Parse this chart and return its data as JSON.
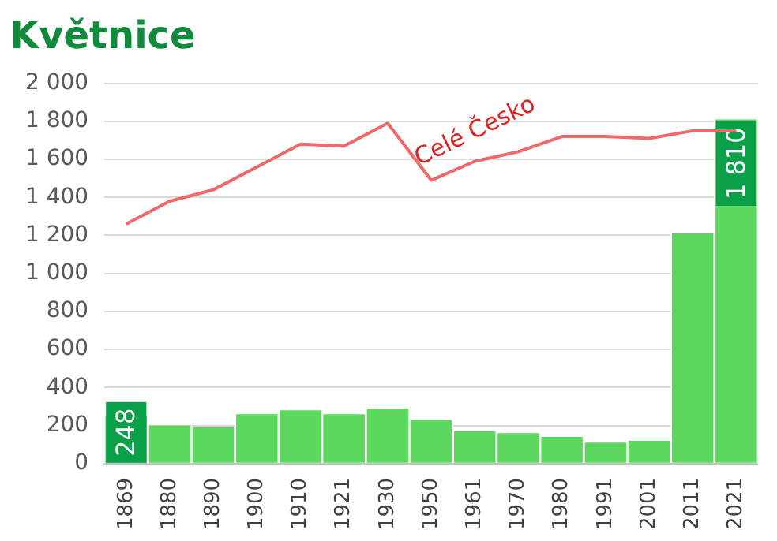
{
  "chart_data": {
    "type": "bar",
    "title": "Květnice",
    "categories": [
      "1869",
      "1880",
      "1890",
      "1900",
      "1910",
      "1921",
      "1930",
      "1950",
      "1961",
      "1970",
      "1980",
      "1991",
      "2001",
      "2011",
      "2021"
    ],
    "series": [
      {
        "color": "#5cd85f",
        "values": [
          248,
          200,
          190,
          260,
          280,
          260,
          290,
          230,
          170,
          160,
          140,
          110,
          120,
          1210,
          1810
        ],
        "value_labels": [
          "248",
          null,
          null,
          null,
          null,
          null,
          null,
          null,
          null,
          null,
          null,
          null,
          null,
          null,
          "1 810"
        ]
      },
      {
        "type": "line",
        "name": "Celé Česko",
        "color": "#f06868",
        "values": [
          1260,
          1380,
          1440,
          1560,
          1680,
          1670,
          1790,
          1490,
          1590,
          1640,
          1720,
          1720,
          1710,
          1750,
          1750
        ]
      }
    ],
    "ylim": [
      0,
      2000
    ],
    "yticks": [
      0,
      200,
      400,
      600,
      800,
      {
        "value": 1000,
        "label": "1 000"
      },
      {
        "value": 1200,
        "label": "1 200"
      },
      {
        "value": 1400,
        "label": "1 400"
      },
      {
        "value": 1600,
        "label": "1 600"
      },
      {
        "value": 1800,
        "label": "1 800"
      },
      {
        "value": 2000,
        "label": "2 000"
      }
    ],
    "grid": "y",
    "legend": false,
    "marker": "none",
    "line_style": "solid"
  }
}
